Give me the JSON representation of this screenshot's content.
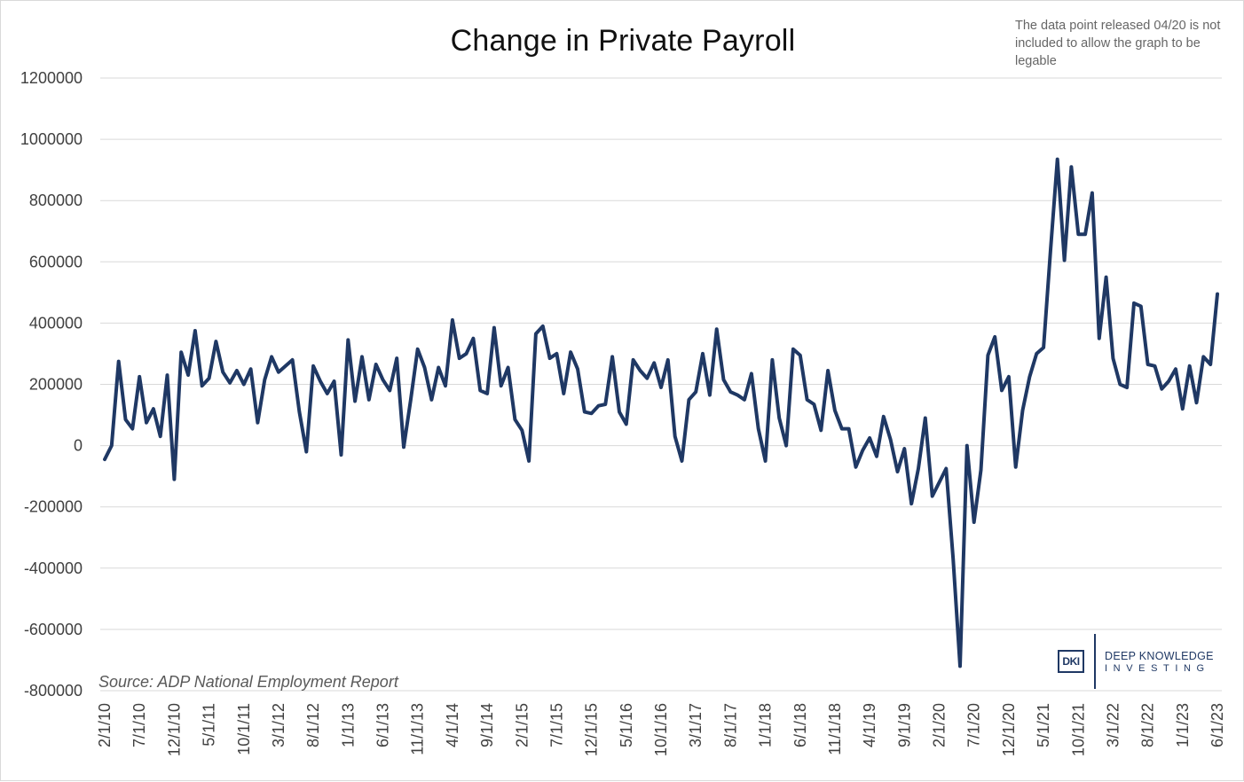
{
  "chart_data": {
    "type": "line",
    "title": "Change in Private Payroll",
    "note": "The data point released 04/20 is not included to allow the graph to be legable",
    "source": "Source: ADP National Employment Report",
    "xlabel": "",
    "ylabel": "",
    "ylim": [
      -800000,
      1200000
    ],
    "yticks": [
      "1200000",
      "1000000",
      "800000",
      "600000",
      "400000",
      "200000",
      "0",
      "-200000",
      "-400000",
      "-600000",
      "-800000"
    ],
    "xtick_labels": [
      "2/1/10",
      "7/1/10",
      "12/1/10",
      "5/1/11",
      "10/1/11",
      "3/1/12",
      "8/1/12",
      "1/1/13",
      "6/1/13",
      "11/1/13",
      "4/1/14",
      "9/1/14",
      "2/1/15",
      "7/1/15",
      "12/1/15",
      "5/1/16",
      "10/1/16",
      "3/1/17",
      "8/1/17",
      "1/1/18",
      "6/1/18",
      "11/1/18",
      "4/1/19",
      "9/1/19",
      "2/1/20",
      "7/1/20",
      "12/1/20",
      "5/1/21",
      "10/1/21",
      "3/1/22",
      "8/1/22",
      "1/1/23",
      "6/1/23"
    ],
    "grid": true,
    "line_color": "#1f3864",
    "series": [
      {
        "values": [
          -45000,
          0,
          275000,
          85000,
          55000,
          225000,
          75000,
          120000,
          30000,
          230000,
          -110000,
          305000,
          230000,
          375000,
          195000,
          220000,
          340000,
          240000,
          205000,
          245000,
          200000,
          250000,
          75000,
          215000,
          290000,
          240000,
          260000,
          280000,
          110000,
          -20000,
          260000,
          210000,
          170000,
          210000,
          -30000,
          345000,
          145000,
          290000,
          150000,
          265000,
          215000,
          180000,
          285000,
          -5000,
          150000,
          315000,
          255000,
          150000,
          255000,
          195000,
          410000,
          285000,
          300000,
          350000,
          180000,
          170000,
          385000,
          195000,
          255000,
          85000,
          50000,
          -50000,
          365000,
          390000,
          285000,
          300000,
          170000,
          305000,
          250000,
          110000,
          105000,
          130000,
          135000,
          290000,
          110000,
          70000,
          280000,
          245000,
          220000,
          270000,
          190000,
          280000,
          30000,
          -50000,
          150000,
          175000,
          300000,
          165000,
          380000,
          215000,
          175000,
          165000,
          150000,
          235000,
          55000,
          -50000,
          280000,
          90000,
          0,
          315000,
          295000,
          150000,
          135000,
          50000,
          245000,
          115000,
          55000,
          55000,
          -70000,
          -15000,
          25000,
          -35000,
          95000,
          20000,
          -85000,
          -10000,
          -190000,
          -75000,
          90000,
          -165000,
          -120000,
          -75000,
          -370000,
          -720000,
          0,
          -250000,
          -80000,
          295000,
          355000,
          180000,
          225000,
          -70000,
          115000,
          225000,
          300000,
          320000,
          635000,
          935000,
          605000,
          910000,
          690000,
          690000,
          825000,
          350000,
          550000,
          285000,
          200000,
          190000,
          465000,
          455000,
          265000,
          260000,
          185000,
          210000,
          250000,
          120000,
          260000,
          140000,
          290000,
          265000,
          495000
        ]
      }
    ]
  }
}
